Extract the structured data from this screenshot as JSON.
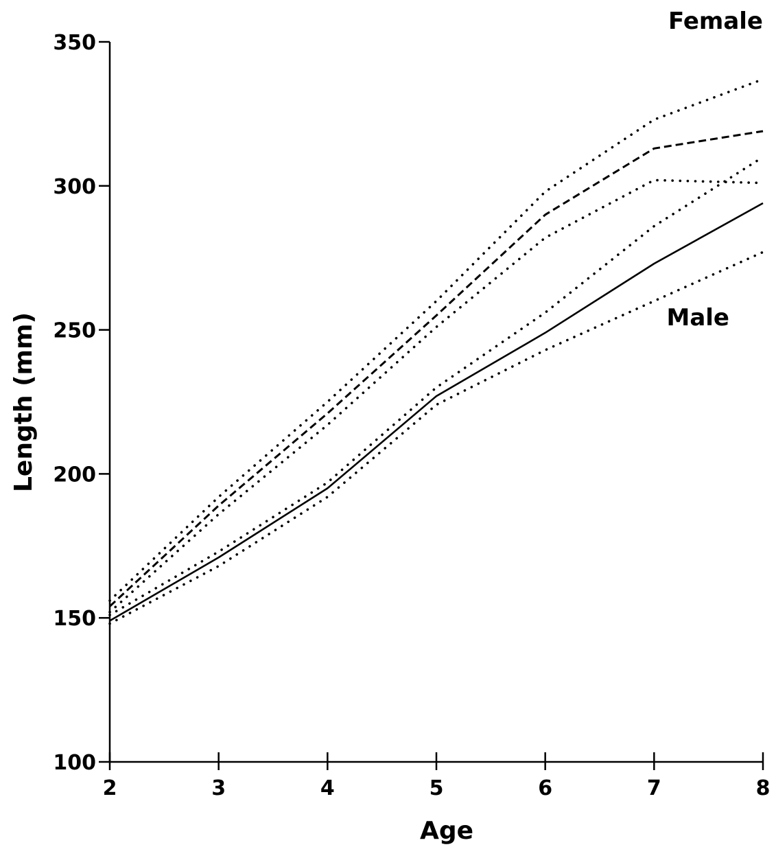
{
  "chart_data": {
    "type": "line",
    "title": "",
    "xlabel": "Age",
    "ylabel": "Length (mm)",
    "xlim": [
      2,
      8
    ],
    "ylim": [
      100,
      350
    ],
    "x_ticks": [
      2,
      3,
      4,
      5,
      6,
      7,
      8
    ],
    "y_ticks": [
      100,
      150,
      200,
      250,
      300,
      350
    ],
    "grid": false,
    "x": [
      2,
      3,
      4,
      5,
      6,
      7,
      8
    ],
    "series": [
      {
        "name": "Female",
        "style": "dashed",
        "values": [
          154,
          189,
          221,
          255,
          290,
          313,
          319
        ]
      },
      {
        "name": "",
        "style": "dotted",
        "values": [
          156,
          192,
          225,
          260,
          298,
          323,
          337
        ]
      },
      {
        "name": "",
        "style": "dotted",
        "values": [
          152,
          186,
          217,
          251,
          282,
          302,
          301
        ]
      },
      {
        "name": "Male",
        "style": "solid",
        "values": [
          149,
          171,
          195,
          227,
          249,
          273,
          294
        ]
      },
      {
        "name": "",
        "style": "dotted",
        "values": [
          151,
          173,
          197,
          230,
          256,
          286,
          310
        ]
      },
      {
        "name": "",
        "style": "dotted",
        "values": [
          148,
          168,
          192,
          224,
          243,
          260,
          277
        ]
      }
    ],
    "color": "#000000"
  }
}
